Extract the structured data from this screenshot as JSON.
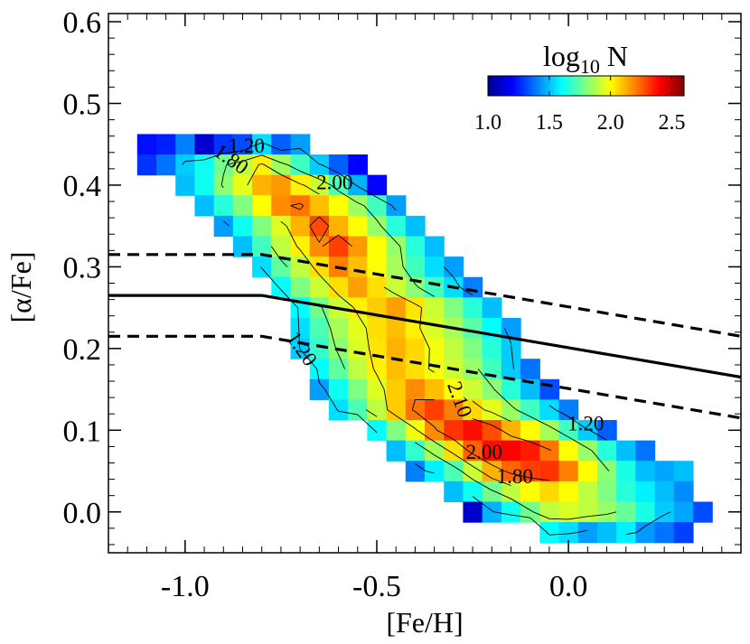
{
  "chart_data": {
    "type": "heatmap",
    "xlabel": "[Fe/H]",
    "ylabel": "[α/Fe]",
    "xlim": [
      -1.2,
      0.45
    ],
    "ylim": [
      -0.05,
      0.61
    ],
    "xticks": [
      -1.0,
      -0.5,
      0.0
    ],
    "xtick_labels": [
      "-1.0",
      "-0.5",
      "0.0"
    ],
    "yticks": [
      0.0,
      0.1,
      0.2,
      0.3,
      0.4,
      0.5,
      0.6
    ],
    "ytick_labels": [
      "0.0",
      "0.1",
      "0.2",
      "0.3",
      "0.4",
      "0.5",
      "0.6"
    ],
    "colorbar": {
      "title": "log",
      "title_subscript": "10",
      "title_suffix": " N",
      "range": [
        1.0,
        2.6
      ],
      "ticks": [
        1.0,
        1.5,
        2.0,
        2.5
      ],
      "tick_labels": [
        "1.0",
        "1.5",
        "2.0",
        "2.5"
      ]
    },
    "bin": {
      "dx": 0.05,
      "dy": 0.025
    },
    "density_rows": [
      {
        "y": 0.45,
        "x0": -1.1,
        "values": [
          1.22,
          1.25,
          1.4,
          1.12,
          1.28,
          1.32,
          1.55,
          1.35,
          1.45
        ]
      },
      {
        "y": 0.425,
        "x0": -1.1,
        "values": [
          1.28,
          1.38,
          1.52,
          1.62,
          1.78,
          1.9,
          2.02,
          1.85,
          1.7,
          1.52,
          1.35,
          1.2
        ]
      },
      {
        "y": 0.4,
        "x0": -1.0,
        "values": [
          1.5,
          1.62,
          1.82,
          1.96,
          2.12,
          2.16,
          2.02,
          1.92,
          1.72,
          1.48,
          1.2
        ]
      },
      {
        "y": 0.375,
        "x0": -0.95,
        "values": [
          1.5,
          1.66,
          1.8,
          2.0,
          2.18,
          2.22,
          2.1,
          2.0,
          1.85,
          1.7,
          1.45
        ]
      },
      {
        "y": 0.35,
        "x0": -0.9,
        "values": [
          1.45,
          1.62,
          1.8,
          1.95,
          2.12,
          2.28,
          2.12,
          2.0,
          1.84,
          1.66,
          1.5
        ]
      },
      {
        "y": 0.325,
        "x0": -0.85,
        "values": [
          1.5,
          1.7,
          1.9,
          2.02,
          2.18,
          2.3,
          2.16,
          2.0,
          1.84,
          1.66,
          1.5
        ]
      },
      {
        "y": 0.3,
        "x0": -0.8,
        "values": [
          1.55,
          1.75,
          1.9,
          2.05,
          2.2,
          2.1,
          2.0,
          1.86,
          1.7,
          1.55,
          1.45
        ]
      },
      {
        "y": 0.275,
        "x0": -0.75,
        "values": [
          1.6,
          1.8,
          1.92,
          2.05,
          2.15,
          2.05,
          1.92,
          1.82,
          1.7,
          1.55,
          1.4
        ]
      },
      {
        "y": 0.25,
        "x0": -0.7,
        "values": [
          1.6,
          1.78,
          1.92,
          2.02,
          2.08,
          2.15,
          2.04,
          1.92,
          1.8,
          1.66,
          1.5
        ]
      },
      {
        "y": 0.225,
        "x0": -0.7,
        "values": [
          1.55,
          1.72,
          1.86,
          1.96,
          2.05,
          2.1,
          2.02,
          1.94,
          1.86,
          1.74,
          1.6,
          1.45
        ]
      },
      {
        "y": 0.2,
        "x0": -0.7,
        "values": [
          1.52,
          1.68,
          1.82,
          1.94,
          2.04,
          2.12,
          2.06,
          1.98,
          1.9,
          1.8,
          1.66,
          1.52
        ]
      },
      {
        "y": 0.175,
        "x0": -0.65,
        "values": [
          1.6,
          1.75,
          1.9,
          2.02,
          2.1,
          2.05,
          1.98,
          1.92,
          1.84,
          1.7,
          1.52,
          1.38
        ]
      },
      {
        "y": 0.15,
        "x0": -0.65,
        "values": [
          1.45,
          1.62,
          1.8,
          1.95,
          2.08,
          2.18,
          2.1,
          2.0,
          1.92,
          1.82,
          1.66,
          1.5,
          1.32
        ]
      },
      {
        "y": 0.125,
        "x0": -0.6,
        "values": [
          1.55,
          1.72,
          1.9,
          2.08,
          2.22,
          2.3,
          2.2,
          2.06,
          1.96,
          1.84,
          1.7,
          1.55,
          1.4
        ]
      },
      {
        "y": 0.1,
        "x0": -0.5,
        "values": [
          1.6,
          1.8,
          1.98,
          2.18,
          2.32,
          2.38,
          2.28,
          2.12,
          2.0,
          1.86,
          1.7,
          1.52,
          1.35
        ]
      },
      {
        "y": 0.075,
        "x0": -0.45,
        "values": [
          1.5,
          1.68,
          1.86,
          2.05,
          2.25,
          2.38,
          2.4,
          2.36,
          2.22,
          2.0,
          1.84,
          1.66,
          1.5,
          1.38
        ]
      },
      {
        "y": 0.05,
        "x0": -0.4,
        "values": [
          1.4,
          1.58,
          1.72,
          1.92,
          2.12,
          2.24,
          2.3,
          2.32,
          2.2,
          2.0,
          1.82,
          1.64,
          1.5,
          1.46,
          1.5
        ]
      },
      {
        "y": 0.025,
        "x0": -0.3,
        "values": [
          1.5,
          1.62,
          1.78,
          1.9,
          2.0,
          2.06,
          2.0,
          1.9,
          1.8,
          1.66,
          1.58,
          1.5,
          1.42
        ]
      },
      {
        "y": 0.0,
        "x0": -0.25,
        "values": [
          1.12,
          1.48,
          1.62,
          1.78,
          1.9,
          1.94,
          1.9,
          1.84,
          1.76,
          1.64,
          1.52,
          1.46,
          1.32
        ]
      },
      {
        "y": -0.025,
        "x0": -0.05,
        "values": [
          1.6,
          1.55,
          1.45,
          1.5,
          1.58,
          1.44,
          1.38,
          1.3
        ]
      }
    ],
    "lines": [
      {
        "style": "solid",
        "points": [
          [
            -1.2,
            0.265
          ],
          [
            -0.8,
            0.265
          ],
          [
            0.45,
            0.165
          ]
        ]
      },
      {
        "style": "dashed",
        "points": [
          [
            -1.2,
            0.315
          ],
          [
            -0.8,
            0.315
          ],
          [
            0.45,
            0.215
          ]
        ]
      },
      {
        "style": "dashed",
        "points": [
          [
            -1.2,
            0.215
          ],
          [
            -0.8,
            0.215
          ],
          [
            0.45,
            0.115
          ]
        ]
      }
    ],
    "contour_labels": [
      {
        "text": "1.20",
        "x": -0.84,
        "y": 0.44,
        "angle": 0
      },
      {
        "text": "1.80",
        "x": -0.89,
        "y": 0.425,
        "angle": 35
      },
      {
        "text": "2.00",
        "x": -0.61,
        "y": 0.395,
        "angle": 0
      },
      {
        "text": "1.20",
        "x": -0.71,
        "y": 0.195,
        "angle": 55
      },
      {
        "text": "2.10",
        "x": -0.3,
        "y": 0.135,
        "angle": 70
      },
      {
        "text": "1.20",
        "x": 0.045,
        "y": 0.1,
        "angle": 0
      },
      {
        "text": "2.00",
        "x": -0.22,
        "y": 0.065,
        "angle": 0
      },
      {
        "text": "1.80",
        "x": -0.14,
        "y": 0.035,
        "angle": 0
      }
    ]
  }
}
